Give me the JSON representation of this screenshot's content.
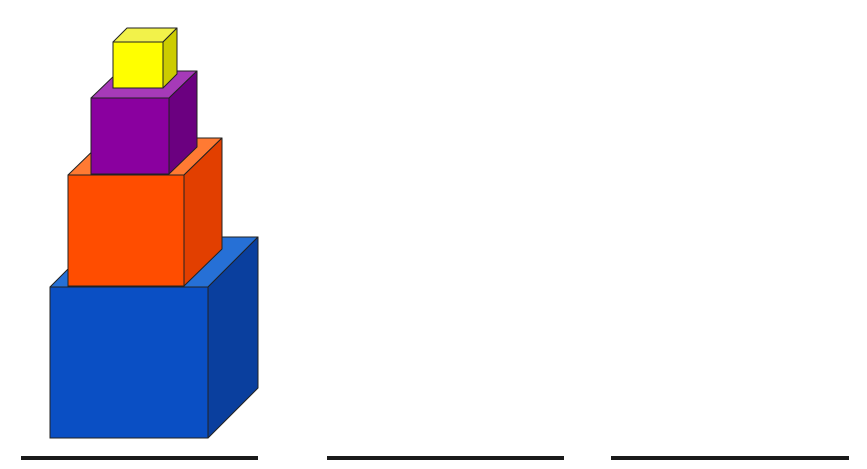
{
  "puzzle": {
    "pegs": [
      {
        "name": "peg-left"
      },
      {
        "name": "peg-middle"
      },
      {
        "name": "peg-right"
      }
    ],
    "cubes": [
      {
        "name": "cube-blue",
        "size_rank": 4,
        "peg": 0,
        "front": "#0a4fc4",
        "top": "#2670d6",
        "side": "#0a3f9e"
      },
      {
        "name": "cube-orange",
        "size_rank": 3,
        "peg": 0,
        "front": "#ff4d00",
        "top": "#ff7a33",
        "side": "#e23f00"
      },
      {
        "name": "cube-purple",
        "size_rank": 2,
        "peg": 0,
        "front": "#8a009f",
        "top": "#a63ab8",
        "side": "#6b0080"
      },
      {
        "name": "cube-yellow",
        "size_rank": 1,
        "peg": 0,
        "front": "#ffff00",
        "top": "#f2f24a",
        "side": "#cccc00"
      }
    ]
  }
}
